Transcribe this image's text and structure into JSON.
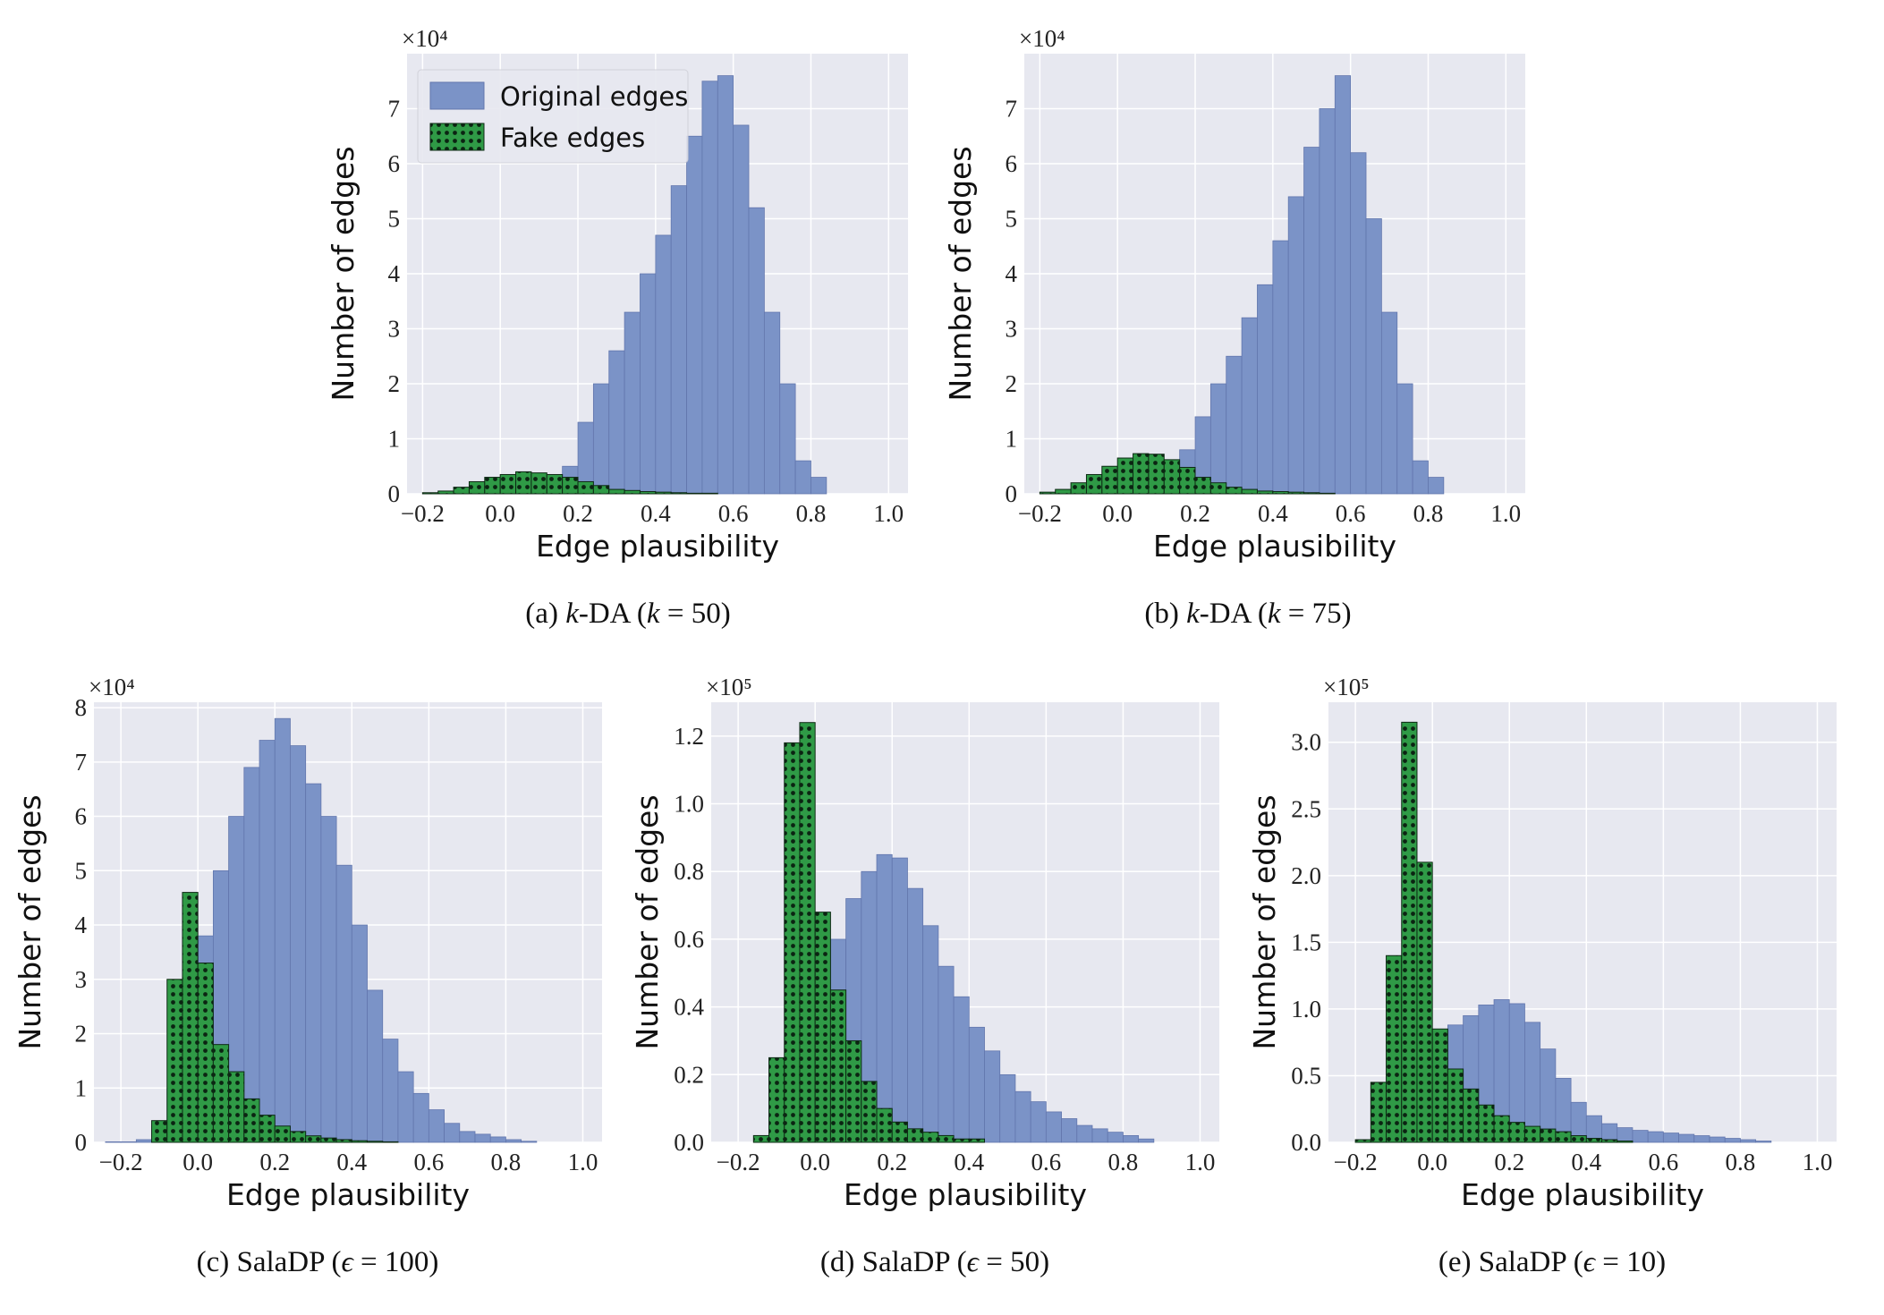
{
  "colors": {
    "original_edges": "#7b93c7",
    "original_edge_stroke": "#6276ad",
    "fake_edges": "#2f9a46",
    "fake_edges_pattern": "#0b2412",
    "plot_bg": "#e7e8f0",
    "grid": "#ffffff"
  },
  "legend": {
    "original": "Original edges",
    "fake": "Fake edges"
  },
  "chart_data": [
    {
      "type": "bar",
      "panel_id": "a",
      "caption": {
        "prefix": "(a) ",
        "math": "k",
        "middle": "-DA (",
        "var": "k",
        "suffix": " = 50)"
      },
      "xlabel": "Edge plausibility",
      "ylabel": "Number of edges",
      "multiplier": "×10⁴",
      "xlim": [
        -0.24,
        1.05
      ],
      "ylim": [
        0,
        8.0
      ],
      "xticks": [
        -0.2,
        0.0,
        0.2,
        0.4,
        0.6,
        0.8,
        1.0
      ],
      "xtick_labels": [
        "−0.2",
        "0.0",
        "0.2",
        "0.4",
        "0.6",
        "0.8",
        "1.0"
      ],
      "yticks": [
        0,
        1,
        2,
        3,
        4,
        5,
        6,
        7
      ],
      "ytick_labels": [
        "0",
        "1",
        "2",
        "3",
        "4",
        "5",
        "6",
        "7"
      ],
      "legend_position": "top-left",
      "series": [
        {
          "name": "Original edges",
          "bins_start": -0.2,
          "bin_width": 0.04,
          "values": [
            0,
            0,
            0,
            0.02,
            0.05,
            0.08,
            0.1,
            0.15,
            0.25,
            0.5,
            1.3,
            2.0,
            2.6,
            3.3,
            4.0,
            4.7,
            5.6,
            6.5,
            7.5,
            7.6,
            6.7,
            5.2,
            3.3,
            2.0,
            0.6,
            0.3
          ]
        },
        {
          "name": "Fake edges",
          "bins_start": -0.2,
          "bin_width": 0.04,
          "values": [
            0.02,
            0.05,
            0.12,
            0.22,
            0.3,
            0.35,
            0.4,
            0.38,
            0.35,
            0.3,
            0.22,
            0.15,
            0.08,
            0.06,
            0.04,
            0.03,
            0.02,
            0.01,
            0.01,
            0,
            0,
            0,
            0,
            0,
            0,
            0
          ]
        }
      ]
    },
    {
      "type": "bar",
      "panel_id": "b",
      "caption": {
        "prefix": "(b) ",
        "math": "k",
        "middle": "-DA (",
        "var": "k",
        "suffix": " = 75)"
      },
      "xlabel": "Edge plausibility",
      "ylabel": "Number of edges",
      "multiplier": "×10⁴",
      "xlim": [
        -0.24,
        1.05
      ],
      "ylim": [
        0,
        8.0
      ],
      "xticks": [
        -0.2,
        0.0,
        0.2,
        0.4,
        0.6,
        0.8,
        1.0
      ],
      "xtick_labels": [
        "−0.2",
        "0.0",
        "0.2",
        "0.4",
        "0.6",
        "0.8",
        "1.0"
      ],
      "yticks": [
        0,
        1,
        2,
        3,
        4,
        5,
        6,
        7
      ],
      "ytick_labels": [
        "0",
        "1",
        "2",
        "3",
        "4",
        "5",
        "6",
        "7"
      ],
      "series": [
        {
          "name": "Original edges",
          "bins_start": -0.2,
          "bin_width": 0.04,
          "values": [
            0,
            0,
            0,
            0.02,
            0.05,
            0.1,
            0.15,
            0.2,
            0.35,
            0.8,
            1.4,
            2.0,
            2.5,
            3.2,
            3.8,
            4.6,
            5.4,
            6.3,
            7.0,
            7.6,
            6.2,
            5.0,
            3.3,
            2.0,
            0.6,
            0.3
          ]
        },
        {
          "name": "Fake edges",
          "bins_start": -0.2,
          "bin_width": 0.04,
          "values": [
            0.03,
            0.08,
            0.2,
            0.35,
            0.5,
            0.65,
            0.73,
            0.72,
            0.62,
            0.48,
            0.3,
            0.2,
            0.12,
            0.08,
            0.05,
            0.04,
            0.03,
            0.02,
            0.01,
            0,
            0,
            0,
            0,
            0,
            0,
            0
          ]
        }
      ]
    },
    {
      "type": "bar",
      "panel_id": "c",
      "caption": {
        "prefix": "(c) SalaDP (",
        "var": "ϵ",
        "suffix": " = 100)"
      },
      "xlabel": "Edge plausibility",
      "ylabel": "Number of edges",
      "multiplier": "×10⁴",
      "xlim": [
        -0.27,
        1.05
      ],
      "ylim": [
        0,
        8.1
      ],
      "xticks": [
        -0.2,
        0.0,
        0.2,
        0.4,
        0.6,
        0.8,
        1.0
      ],
      "xtick_labels": [
        "−0.2",
        "0.0",
        "0.2",
        "0.4",
        "0.6",
        "0.8",
        "1.0"
      ],
      "yticks": [
        0,
        1,
        2,
        3,
        4,
        5,
        6,
        7,
        8
      ],
      "ytick_labels": [
        "0",
        "1",
        "2",
        "3",
        "4",
        "5",
        "6",
        "7",
        "8"
      ],
      "series": [
        {
          "name": "Original edges",
          "bins_start": -0.24,
          "bin_width": 0.04,
          "values": [
            0.01,
            0.01,
            0.05,
            0.3,
            1.0,
            2.5,
            3.8,
            5.0,
            6.0,
            6.9,
            7.4,
            7.8,
            7.3,
            6.6,
            6.0,
            5.1,
            4.0,
            2.8,
            1.9,
            1.3,
            0.9,
            0.6,
            0.35,
            0.2,
            0.15,
            0.1,
            0.05,
            0.02
          ]
        },
        {
          "name": "Fake edges",
          "bins_start": -0.24,
          "bin_width": 0.04,
          "values": [
            0,
            0,
            0,
            0.4,
            3.0,
            4.6,
            3.3,
            1.8,
            1.3,
            0.8,
            0.5,
            0.3,
            0.2,
            0.12,
            0.08,
            0.05,
            0.03,
            0.02,
            0.01,
            0,
            0,
            0,
            0,
            0,
            0,
            0,
            0,
            0
          ]
        }
      ]
    },
    {
      "type": "bar",
      "panel_id": "d",
      "caption": {
        "prefix": "(d) SalaDP (",
        "var": "ϵ",
        "suffix": " = 50)"
      },
      "xlabel": "Edge plausibility",
      "ylabel": "Number of edges",
      "multiplier": "×10⁵",
      "xlim": [
        -0.27,
        1.05
      ],
      "ylim": [
        0,
        1.3
      ],
      "xticks": [
        -0.2,
        0.0,
        0.2,
        0.4,
        0.6,
        0.8,
        1.0
      ],
      "xtick_labels": [
        "−0.2",
        "0.0",
        "0.2",
        "0.4",
        "0.6",
        "0.8",
        "1.0"
      ],
      "yticks": [
        0,
        0.2,
        0.4,
        0.6,
        0.8,
        1.0,
        1.2
      ],
      "ytick_labels": [
        "0.0",
        "0.2",
        "0.4",
        "0.6",
        "0.8",
        "1.0",
        "1.2"
      ],
      "series": [
        {
          "name": "Original edges",
          "bins_start": -0.24,
          "bin_width": 0.04,
          "values": [
            0.0,
            0.0,
            0.0,
            0.01,
            0.05,
            0.2,
            0.45,
            0.6,
            0.72,
            0.8,
            0.85,
            0.84,
            0.75,
            0.64,
            0.52,
            0.43,
            0.34,
            0.27,
            0.2,
            0.15,
            0.12,
            0.09,
            0.07,
            0.05,
            0.04,
            0.03,
            0.02,
            0.01
          ]
        },
        {
          "name": "Fake edges",
          "bins_start": -0.24,
          "bin_width": 0.04,
          "values": [
            0,
            0,
            0.02,
            0.25,
            1.18,
            1.24,
            0.68,
            0.45,
            0.3,
            0.18,
            0.1,
            0.06,
            0.04,
            0.03,
            0.02,
            0.01,
            0.01,
            0,
            0,
            0,
            0,
            0,
            0,
            0,
            0,
            0,
            0,
            0
          ]
        }
      ]
    },
    {
      "type": "bar",
      "panel_id": "e",
      "caption": {
        "prefix": "(e) SalaDP (",
        "var": "ϵ",
        "suffix": " = 10)"
      },
      "xlabel": "Edge plausibility",
      "ylabel": "Number of edges",
      "multiplier": "×10⁵",
      "xlim": [
        -0.27,
        1.05
      ],
      "ylim": [
        0,
        3.3
      ],
      "xticks": [
        -0.2,
        0.0,
        0.2,
        0.4,
        0.6,
        0.8,
        1.0
      ],
      "xtick_labels": [
        "−0.2",
        "0.0",
        "0.2",
        "0.4",
        "0.6",
        "0.8",
        "1.0"
      ],
      "yticks": [
        0,
        0.5,
        1.0,
        1.5,
        2.0,
        2.5,
        3.0
      ],
      "ytick_labels": [
        "0.0",
        "0.5",
        "1.0",
        "1.5",
        "2.0",
        "2.5",
        "3.0"
      ],
      "series": [
        {
          "name": "Original edges",
          "bins_start": -0.24,
          "bin_width": 0.04,
          "values": [
            0.0,
            0.0,
            0.01,
            0.05,
            0.2,
            0.5,
            0.8,
            0.88,
            0.95,
            1.03,
            1.07,
            1.04,
            0.9,
            0.7,
            0.48,
            0.3,
            0.2,
            0.14,
            0.11,
            0.09,
            0.08,
            0.07,
            0.06,
            0.05,
            0.04,
            0.03,
            0.02,
            0.01
          ]
        },
        {
          "name": "Fake edges",
          "bins_start": -0.24,
          "bin_width": 0.04,
          "values": [
            0,
            0.02,
            0.45,
            1.4,
            3.15,
            2.1,
            0.85,
            0.55,
            0.4,
            0.28,
            0.2,
            0.15,
            0.12,
            0.1,
            0.08,
            0.05,
            0.03,
            0.02,
            0.01,
            0,
            0,
            0,
            0,
            0,
            0,
            0,
            0,
            0
          ]
        }
      ]
    }
  ]
}
